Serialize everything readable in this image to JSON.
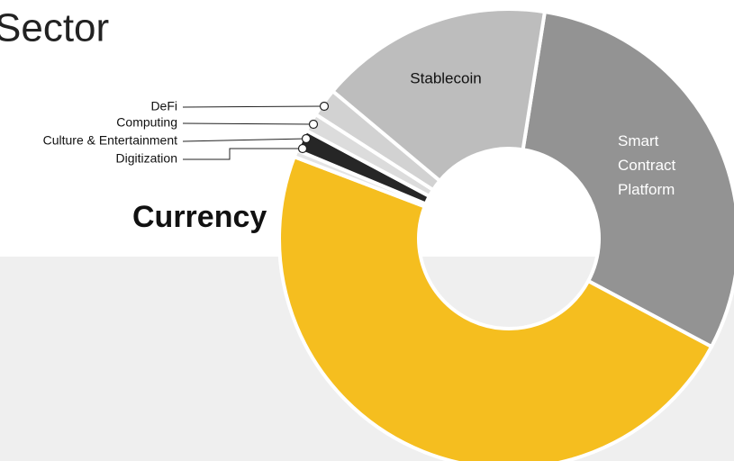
{
  "chart_data": {
    "type": "pie",
    "title": "Sector",
    "categories": [
      "Smart Contract Platform",
      "Currency",
      "Digitization",
      "Culture & Entertainment",
      "Computing",
      "DeFi",
      "Stablecoin"
    ],
    "values": [
      30.3,
      48,
      0.5,
      1.5,
      1.3,
      2,
      16.4
    ],
    "colors": [
      "#939393",
      "#f5be1f",
      "#e4e4e4",
      "#262626",
      "#dcdcdc",
      "#d2d2d2",
      "#bdbdbd"
    ],
    "donut": true
  }
}
